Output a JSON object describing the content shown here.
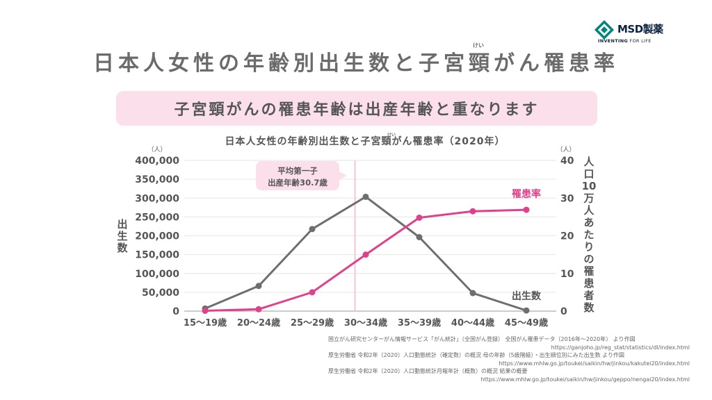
{
  "brand": {
    "name": "MSD製薬",
    "tagline_bold": "INVENTING",
    "tagline_rest": " FOR LIFE",
    "color": "#0c2340",
    "accent": "#00857c"
  },
  "title": "日本人女性の年齢別出生数と子宮頸がん罹患率",
  "title_ruby": "けい",
  "banner": {
    "text": "子宮頸がんの罹患年齢は出産年齢と重なります",
    "ruby": "けい",
    "color": "#fbe0ec"
  },
  "chart_data": {
    "type": "line",
    "title": "日本人女性の年齢別出生数と子宮頸がん罹患率（2020年）",
    "title_ruby": "けい",
    "categories": [
      "15〜19歳",
      "20〜24歳",
      "25〜29歳",
      "30〜34歳",
      "35〜39歳",
      "40〜44歳",
      "45〜49歳"
    ],
    "y_left": {
      "unit": "（人）",
      "label": "出生数",
      "min": 0,
      "max": 400000,
      "ticks": [
        "0",
        "50,000",
        "100,000",
        "150,000",
        "200,000",
        "250,000",
        "300,000",
        "350,000",
        "400,000"
      ]
    },
    "y_right": {
      "unit": "（人）",
      "label": "人口10万人あたりの罹患者数",
      "min": 0,
      "max": 40,
      "ticks": [
        "0",
        "10",
        "20",
        "30",
        "40"
      ]
    },
    "series": [
      {
        "name": "出生数",
        "axis": "left",
        "color": "#6e6e6e",
        "values": [
          6948,
          66751,
          217804,
          303436,
          196321,
          47899,
          1624
        ]
      },
      {
        "name": "罹患率",
        "axis": "right",
        "color": "#e0418b",
        "values": [
          0.1,
          0.5,
          5.0,
          15.0,
          24.8,
          26.5,
          26.9
        ]
      }
    ],
    "annotation": {
      "line1": "平均第一子",
      "line2": "出産年齢30.7歳",
      "x_value": 30.7,
      "line_color": "#f6c3d8",
      "box_color": "#fbe0ec"
    },
    "grid": "horizontal"
  },
  "sources": [
    {
      "text": "国立がん研究センターがん情報サービス「がん統計」（全国がん登録） 全国がん罹患データ（2016年〜2020年） より作図",
      "url": "https://ganjoho.jp/reg_stat/statistics/dl/index.html"
    },
    {
      "text": "厚生労働省 令和2年（2020）人口動態統計（確定数）の概況 母の年齢（5歳階級）・出生順位別にみた出生数 より作図",
      "url": "https://www.mhlw.go.jp/toukei/saikin/hw/jinkou/kakutei20/index.html"
    },
    {
      "text": "厚生労働省 令和2年（2020）人口動態統計月報年計（概数）の概況 結果の概要",
      "url": "https://www.mhlw.go.jp/toukei/saikin/hw/jinkou/geppo/nengai20/index.html"
    }
  ]
}
